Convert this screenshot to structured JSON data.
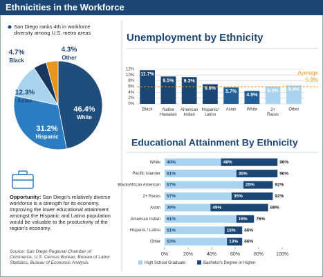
{
  "header": {
    "title": "Ethnicities in the Workforce"
  },
  "notes": {
    "ranking": "San Diego ranks 4th in workforce diversity among U.S. metro areas",
    "opportunity_label": "Opportunity:",
    "opportunity_text": "San Diego's relatively diverse workforce is a strength for its economy. Improving the lower educational attainment amongst the Hispanic and Latino population would be valuable to the productivity of the region's economy.",
    "source": "Source: San Diego Regional Chamber of Commerce, U.S. Census Bureau, Bureau of Labor Statistics, Bureau of Economic Analysis"
  },
  "chart_data": [
    {
      "type": "pie",
      "categories": [
        "White",
        "Hispanic",
        "Asian",
        "Black",
        "Other"
      ],
      "values": [
        46.4,
        31.2,
        12.3,
        4.7,
        4.3
      ],
      "value_labels": [
        "46.4%",
        "31.2%",
        "12.3%",
        "4.7%",
        "4.3%"
      ],
      "colors": [
        "#1f4e7d",
        "#2b7cc0",
        "#a9d4f0",
        "#17375e",
        "#e8961e"
      ]
    },
    {
      "type": "bar",
      "title": "Unemployment by Ethnicity",
      "categories": [
        "Black",
        "Native Hawaiian",
        "American Indian",
        "Hispanic/ Latino",
        "Asian",
        "White",
        "2+ Races",
        "Other"
      ],
      "values": [
        11.7,
        9.5,
        9.3,
        6.8,
        5.7,
        4.5,
        6.0,
        6.4
      ],
      "value_labels": [
        "11.7%",
        "9.5%",
        "9.3%",
        "6.8%",
        "5.7%",
        "4.5%",
        "6.0%",
        "6.4%"
      ],
      "colors": [
        "#1b4673",
        "#1b4673",
        "#1b4673",
        "#1b4673",
        "#23609a",
        "#23609a",
        "#a9d4f0",
        "#a9d4f0"
      ],
      "ylim": [
        0,
        12
      ],
      "yticks": [
        {
          "value": 0,
          "label": "0%"
        },
        {
          "value": 2,
          "label": "2%"
        },
        {
          "value": 4,
          "label": "4%"
        },
        {
          "value": 6,
          "label": "6%"
        },
        {
          "value": 8,
          "label": "8%"
        },
        {
          "value": 10,
          "label": "10%"
        },
        {
          "value": 12,
          "label": "12%"
        }
      ],
      "grid": true,
      "average": {
        "label": "Average",
        "value": 5.9,
        "value_label": "5.9%",
        "color": "#e8961e"
      }
    },
    {
      "type": "stacked_barh",
      "title": "Educational Attainment By Ethnicity",
      "categories": [
        "White",
        "Pacific Islander",
        "Black/African American",
        "2+ Races",
        "Asian",
        "American Indian",
        "Hispanic / Latino",
        "Other"
      ],
      "series": [
        {
          "name": "High School Graduate",
          "color": "#a9d4f0",
          "values": [
            48,
            61,
            67,
            57,
            39,
            61,
            51,
            53
          ],
          "value_labels": [
            "48%",
            "61%",
            "67%",
            "57%",
            "39%",
            "61%",
            "51%",
            "53%"
          ]
        },
        {
          "name": "Bachelor's Degree or Higher",
          "color": "#1b4673",
          "values": [
            48,
            35,
            25,
            35,
            49,
            15,
            15,
            13
          ],
          "value_labels": [
            "48%",
            "35%",
            "25%",
            "35%",
            "49%",
            "15%",
            "15%",
            "13%"
          ]
        }
      ],
      "total_labels": [
        "96%",
        "96%",
        "92%",
        "92%",
        "88%",
        "76%",
        "66%",
        "66%"
      ],
      "xlim": [
        0,
        100
      ],
      "xticks": [
        {
          "value": 0,
          "label": "0%"
        },
        {
          "value": 20,
          "label": "20%"
        },
        {
          "value": 40,
          "label": "40%"
        },
        {
          "value": 60,
          "label": "60%"
        },
        {
          "value": 80,
          "label": "80%"
        },
        {
          "value": 100,
          "label": "100%"
        }
      ],
      "legend": "bottom"
    }
  ]
}
